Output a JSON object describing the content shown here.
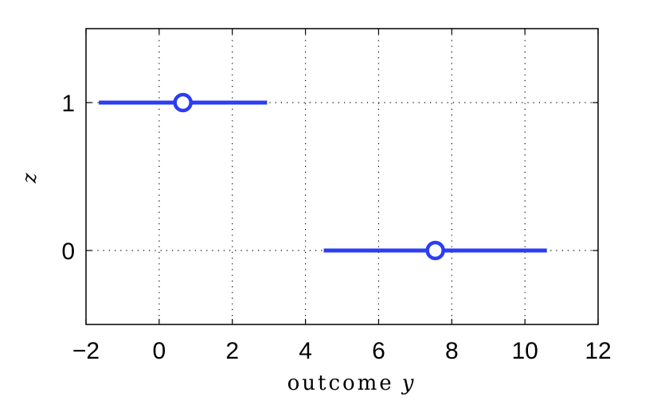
{
  "chart_data": {
    "type": "scatter",
    "title": "",
    "xlabel_text": "outcome",
    "xlabel_var": "y",
    "ylabel": "z",
    "xlim": [
      -2,
      12
    ],
    "ylim": [
      -0.5,
      1.5
    ],
    "xticks": [
      -2,
      0,
      2,
      4,
      6,
      8,
      10,
      12
    ],
    "xtick_labels": [
      "−2",
      "0",
      "2",
      "4",
      "6",
      "8",
      "10",
      "12"
    ],
    "yticks": [
      0,
      1
    ],
    "ytick_labels": [
      "0",
      "1"
    ],
    "grid": true,
    "series_color": "#2b3df5",
    "points": [
      {
        "z": 1,
        "x": 0.65,
        "interval": [
          -1.65,
          2.95
        ]
      },
      {
        "z": 0,
        "x": 7.55,
        "interval": [
          4.5,
          10.6
        ]
      }
    ]
  }
}
